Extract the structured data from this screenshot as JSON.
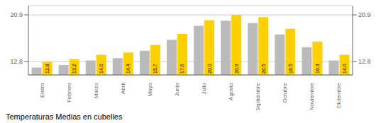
{
  "chart_data": {
    "type": "bar",
    "title": "Temperaturas Medias en cubelles",
    "categories": [
      "Enero",
      "Febrero",
      "Marzo",
      "Abril",
      "Mayo",
      "Junio",
      "Julio",
      "Agosto",
      "Septiembre",
      "Octubre",
      "Noviembre",
      "Diciembre"
    ],
    "series": [
      {
        "color": "#BBBBBB",
        "values": [
          11.8,
          12.2,
          13.0,
          13.4,
          14.7,
          16.6,
          19.0,
          19.9,
          19.5,
          17.5,
          15.3,
          13.0
        ]
      },
      {
        "color": "#FFD000",
        "values": [
          12.8,
          13.2,
          14.0,
          14.4,
          15.7,
          17.6,
          20.0,
          20.9,
          20.5,
          18.5,
          16.3,
          14.0
        ],
        "data_labels": true,
        "value_labels": [
          "12.8",
          "13.2",
          "14.0",
          "14.4",
          "15.7",
          "17.6",
          "20.0",
          "20.9",
          "20.5",
          "18.5",
          "16.3",
          "14.0"
        ]
      }
    ],
    "ylim": [
      10.5,
      22.5
    ],
    "yticks": [
      12.8,
      20.9
    ],
    "y2lim": [
      10.5,
      22.5
    ],
    "y2ticks": [
      12.8,
      20.9
    ],
    "grid": true
  }
}
